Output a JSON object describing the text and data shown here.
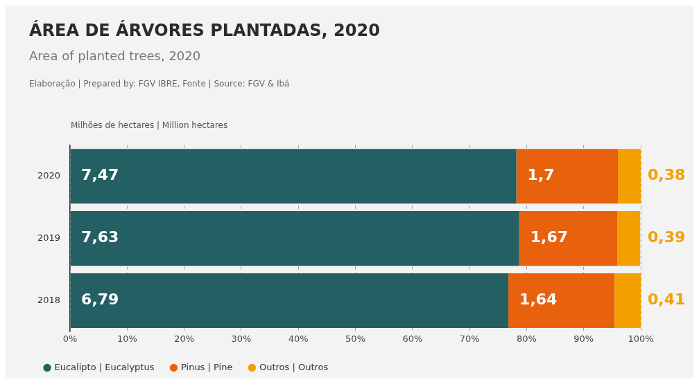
{
  "chart_data": {
    "type": "bar",
    "orientation": "horizontal",
    "stacked": true,
    "title": "ÁREA DE ÁRVORES PLANTADAS, 2020",
    "subtitle": "Area of planted trees, 2020",
    "annotations": [
      "Elaboração | Prepared by: FGV IBRE, Fonte | Source: FGV & Ibá",
      "Milhões de hectares | Million hectares",
      {
        "text": "7,47",
        "x": 0,
        "y": "2020"
      },
      {
        "text": "1,7",
        "x": 78.2,
        "y": "2020"
      },
      {
        "text": "0,38",
        "x": 100,
        "y": "2020"
      },
      {
        "text": "7,63",
        "x": 0,
        "y": "2019"
      },
      {
        "text": "1,67",
        "x": 78.7,
        "y": "2019"
      },
      {
        "text": "0,39",
        "x": 100,
        "y": "2019"
      },
      {
        "text": "6,79",
        "x": 0,
        "y": "2018"
      },
      {
        "text": "1,64",
        "x": 76.8,
        "y": "2018"
      },
      {
        "text": "0,41",
        "x": 100,
        "y": "2018"
      }
    ],
    "categories": [
      "2020",
      "2019",
      "2018"
    ],
    "series": [
      {
        "name": "Eucalipto | Eucalyptus",
        "color": "#245f63",
        "values": [
          78.2,
          78.7,
          76.8
        ]
      },
      {
        "name": "Pinus | Pine",
        "color": "#e8620e",
        "values": [
          17.8,
          17.2,
          18.6
        ]
      },
      {
        "name": "Outros | Outros",
        "color": "#f3a000",
        "values": [
          4.0,
          4.0,
          4.6
        ]
      }
    ],
    "xlim": [
      0,
      100
    ],
    "xticks": [
      {
        "value": 0,
        "label": "0%"
      },
      {
        "value": 10,
        "label": "10%"
      },
      {
        "value": 20,
        "label": "20%"
      },
      {
        "value": 30,
        "label": "30%"
      },
      {
        "value": 40,
        "label": "40%"
      },
      {
        "value": 50,
        "label": "50%"
      },
      {
        "value": 60,
        "label": "60%"
      },
      {
        "value": 70,
        "label": "70%"
      },
      {
        "value": 80,
        "label": "80%"
      },
      {
        "value": 90,
        "label": "90%"
      },
      {
        "value": 100,
        "label": "100%"
      }
    ],
    "grid": "x",
    "legend": "bottom left"
  }
}
